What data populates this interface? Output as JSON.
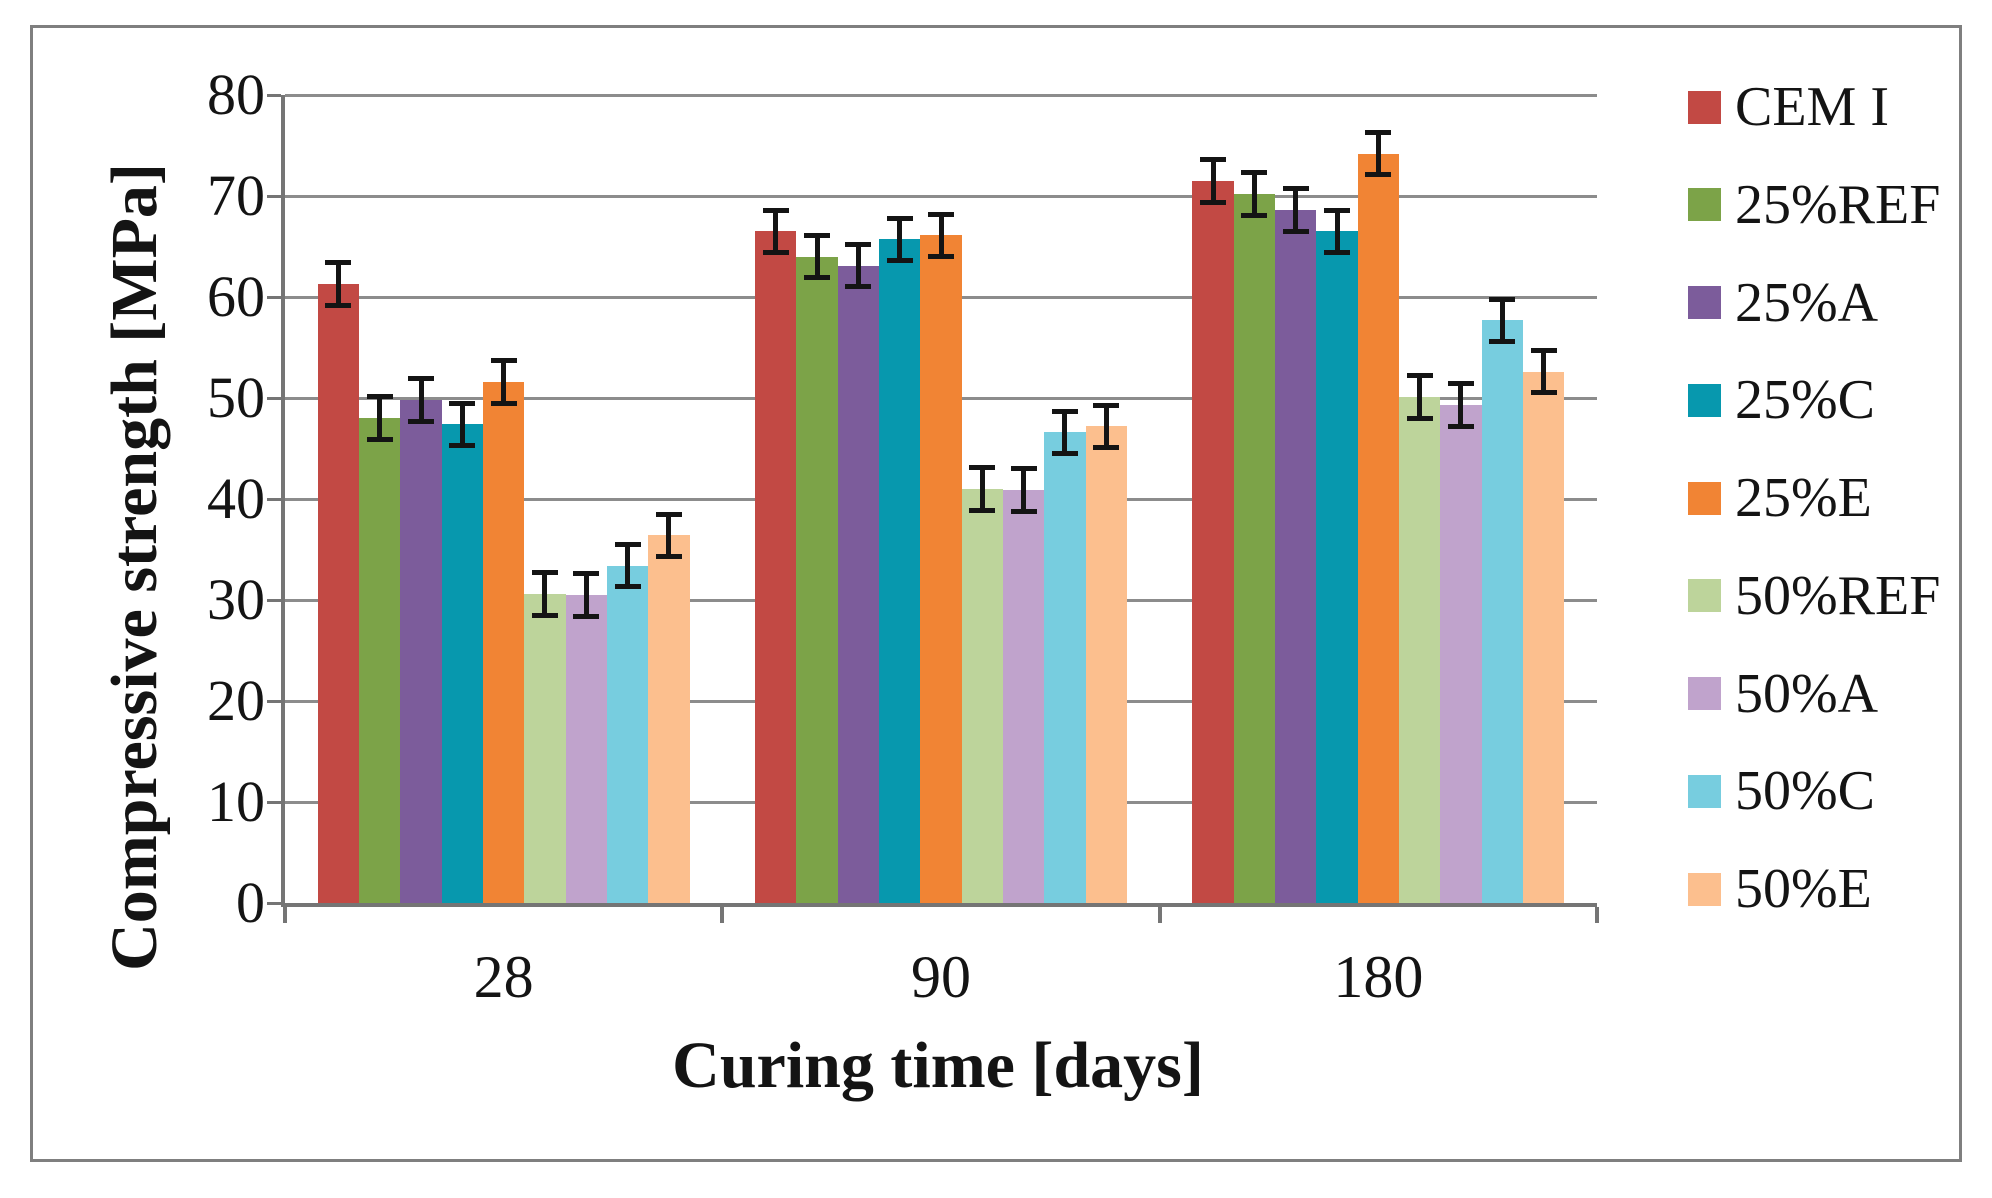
{
  "figure": {
    "border_color": "#7F7F7F",
    "background": "#FFFFFF"
  },
  "colors": {
    "grid": "#8C8C8C",
    "axis": "#757575",
    "text": "#141414",
    "error_bar": "#141414"
  },
  "chart_data": {
    "type": "bar",
    "title": "",
    "xlabel": "Curing time [days]",
    "ylabel": "Compressive strength [MPa]",
    "categories": [
      "28",
      "90",
      "180"
    ],
    "ylim": [
      0,
      80
    ],
    "yticks": [
      0,
      10,
      20,
      30,
      40,
      50,
      60,
      70,
      80
    ],
    "grid": true,
    "legend_position": "right",
    "error_bars": true,
    "series": [
      {
        "name": "CEM I",
        "color": "#C24944",
        "values": [
          61.3,
          66.5,
          71.5
        ],
        "errors": [
          2.1,
          2.1,
          2.1
        ]
      },
      {
        "name": "25%REF",
        "color": "#7CA348",
        "values": [
          48.0,
          64.0,
          70.2
        ],
        "errors": [
          2.1,
          2.1,
          2.1
        ]
      },
      {
        "name": "25%A",
        "color": "#7C5C9B",
        "values": [
          49.8,
          63.1,
          68.6
        ],
        "errors": [
          2.1,
          2.1,
          2.1
        ]
      },
      {
        "name": "25%C",
        "color": "#0798AE",
        "values": [
          47.4,
          65.7,
          66.5
        ],
        "errors": [
          2.1,
          2.1,
          2.1
        ]
      },
      {
        "name": "25%E",
        "color": "#F18434",
        "values": [
          51.6,
          66.1,
          74.2
        ],
        "errors": [
          2.1,
          2.1,
          2.1
        ]
      },
      {
        "name": "50%REF",
        "color": "#BDD49B",
        "values": [
          30.6,
          41.0,
          50.1
        ],
        "errors": [
          2.1,
          2.1,
          2.1
        ]
      },
      {
        "name": "50%A",
        "color": "#C0A3CC",
        "values": [
          30.5,
          40.9,
          49.3
        ],
        "errors": [
          2.1,
          2.1,
          2.1
        ]
      },
      {
        "name": "50%C",
        "color": "#77CDDF",
        "values": [
          33.4,
          46.6,
          57.7
        ],
        "errors": [
          2.1,
          2.1,
          2.1
        ]
      },
      {
        "name": "50%E",
        "color": "#FCBF8E",
        "values": [
          36.4,
          47.2,
          52.6
        ],
        "errors": [
          2.1,
          2.1,
          2.1
        ]
      }
    ]
  }
}
